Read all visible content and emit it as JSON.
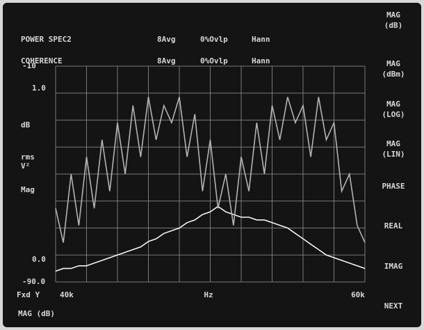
{
  "header": {
    "trace_a": [
      "POWER SPEC2",
      "8Avg",
      "0%Ovlp",
      "Hann"
    ],
    "trace_b": [
      "COHERENCE",
      "8Avg",
      "0%Ovlp",
      "Hann"
    ]
  },
  "left_labels": {
    "unit": "dB",
    "rms": [
      "rms",
      "V²"
    ],
    "mag": "Mag",
    "x_mode": "Fxd Y",
    "format": "MAG (dB)"
  },
  "softkeys": [
    [
      "MAG",
      "(dB)"
    ],
    [
      "MAG",
      "(dBm)"
    ],
    [
      "MAG",
      "(LOG)"
    ],
    [
      "MAG",
      "(LIN)"
    ],
    [
      "PHASE"
    ],
    [
      "REAL"
    ],
    [
      "IMAG"
    ],
    [
      "NEXT"
    ]
  ],
  "chart_data": {
    "type": "line",
    "x_label": "Hz",
    "x": [
      40000,
      40500,
      41000,
      41500,
      42000,
      42500,
      43000,
      43500,
      44000,
      44500,
      45000,
      45500,
      46000,
      46500,
      47000,
      47500,
      48000,
      48500,
      49000,
      49500,
      50000,
      50500,
      51000,
      51500,
      52000,
      52500,
      53000,
      53500,
      54000,
      54500,
      55000,
      55500,
      56000,
      56500,
      57000,
      57500,
      58000,
      58500,
      59000,
      59500,
      60000
    ],
    "xlim": [
      40000,
      60000
    ],
    "xticks": [
      {
        "value": 40000,
        "label": "40k"
      },
      {
        "value": 60000,
        "label": "60k"
      }
    ],
    "ylim": [
      -90,
      -10
    ],
    "yticks": [
      {
        "value": -10,
        "label": "-10"
      },
      {
        "value": -90,
        "label": "-90.0"
      }
    ],
    "y2lim": [
      -0.13,
      1.13
    ],
    "y2ticks": [
      {
        "value": 1,
        "label": "1.0"
      },
      {
        "value": 0,
        "label": "0.0"
      }
    ],
    "series": [
      {
        "name": "POWER SPEC2",
        "color": "#f4f4f4",
        "values": [
          -86,
          -85,
          -85,
          -84,
          -84,
          -83,
          -82,
          -81,
          -80,
          -79,
          -78,
          -77,
          -75,
          -74,
          -72,
          -71,
          -70,
          -68,
          -67,
          -65,
          -64,
          -62,
          -64,
          -65,
          -66,
          -66,
          -67,
          -67,
          -68,
          -69,
          -70,
          -72,
          -74,
          -76,
          -78,
          -80,
          -81,
          -82,
          -83,
          -84,
          -85
        ]
      },
      {
        "name": "COHERENCE",
        "color": "#b4b4b4",
        "axis": "y2",
        "values": [
          0.3,
          0.1,
          0.5,
          0.2,
          0.6,
          0.3,
          0.7,
          0.4,
          0.8,
          0.5,
          0.9,
          0.6,
          0.95,
          0.7,
          0.9,
          0.8,
          0.95,
          0.6,
          0.85,
          0.4,
          0.7,
          0.3,
          0.5,
          0.2,
          0.6,
          0.4,
          0.8,
          0.5,
          0.9,
          0.7,
          0.95,
          0.8,
          0.9,
          0.6,
          0.95,
          0.7,
          0.8,
          0.4,
          0.5,
          0.2,
          0.1
        ]
      }
    ]
  }
}
